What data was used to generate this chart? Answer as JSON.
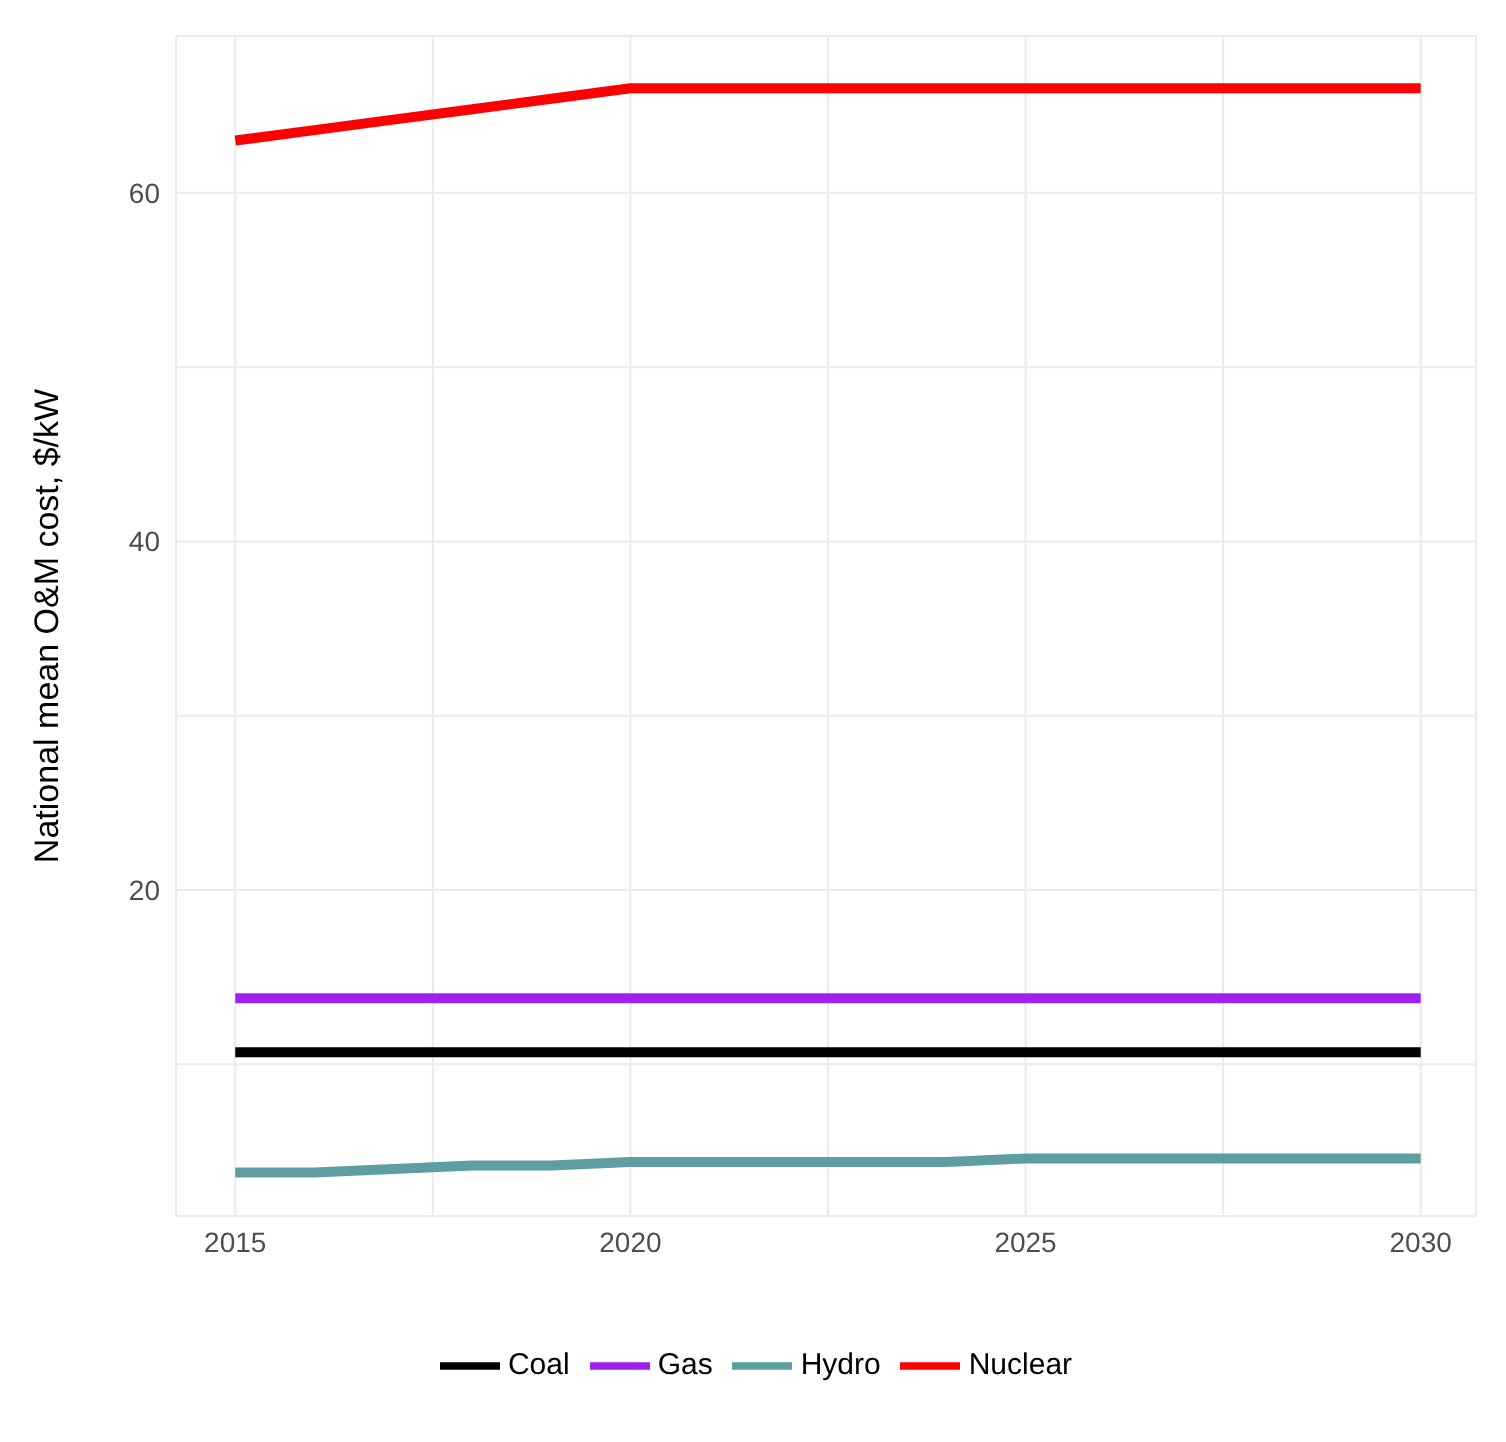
{
  "chart_data": {
    "type": "line",
    "ylabel": "National mean O&M cost, $/kW",
    "x": [
      2015,
      2016,
      2017,
      2018,
      2019,
      2020,
      2021,
      2022,
      2023,
      2024,
      2025,
      2026,
      2027,
      2028,
      2029,
      2030
    ],
    "series": [
      {
        "name": "Coal",
        "color": "#000000",
        "values": [
          10.7,
          10.7,
          10.7,
          10.7,
          10.7,
          10.7,
          10.7,
          10.7,
          10.7,
          10.7,
          10.7,
          10.7,
          10.7,
          10.7,
          10.7,
          10.7
        ]
      },
      {
        "name": "Gas",
        "color": "#a020f0",
        "values": [
          13.8,
          13.8,
          13.8,
          13.8,
          13.8,
          13.8,
          13.8,
          13.8,
          13.8,
          13.8,
          13.8,
          13.8,
          13.8,
          13.8,
          13.8,
          13.8
        ]
      },
      {
        "name": "Hydro",
        "color": "#5f9ea0",
        "values": [
          3.8,
          3.8,
          4.0,
          4.2,
          4.2,
          4.4,
          4.4,
          4.4,
          4.4,
          4.4,
          4.6,
          4.6,
          4.6,
          4.6,
          4.6,
          4.6
        ]
      },
      {
        "name": "Nuclear",
        "color": "#ff0000",
        "values": [
          63,
          63.6,
          64.2,
          64.8,
          65.4,
          66,
          66,
          66,
          66,
          66,
          66,
          66,
          66,
          66,
          66,
          66
        ]
      }
    ],
    "xlim": [
      2014.25,
      2030.7
    ],
    "ylim": [
      1.3,
      69
    ],
    "xticks": [
      2015,
      {
        "value": 2017.5,
        "label": null
      },
      2020,
      {
        "value": 2022.5,
        "label": null
      },
      2025,
      {
        "value": 2027.5,
        "label": null
      },
      2030
    ],
    "yticks": [
      {
        "value": 10,
        "label": null
      },
      20,
      {
        "value": 30,
        "label": null
      },
      40,
      {
        "value": 50,
        "label": null
      },
      60
    ],
    "grid": true,
    "legend": "bottom",
    "marker": "none",
    "line_style": "solid"
  }
}
